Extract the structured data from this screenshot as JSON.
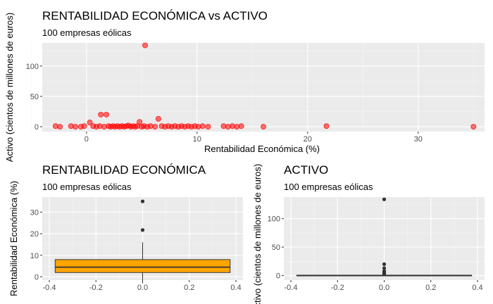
{
  "chart_data": [
    {
      "type": "scatter",
      "title": "RENTABILIDAD ECONÓMICA vs ACTIVO",
      "subtitle": "100 empresas eólicas",
      "xlabel": "Rentabilidad Económica (%)",
      "ylabel": "Activo (cientos de millones de euros)",
      "xlim": [
        -4,
        36
      ],
      "ylim": [
        -8,
        138
      ],
      "x_ticks": [
        0,
        10,
        20,
        30
      ],
      "y_ticks": [
        0,
        50,
        100
      ],
      "grid": true,
      "point_color": "#ff0000",
      "points": [
        [
          -2.8,
          1
        ],
        [
          -2.4,
          0
        ],
        [
          -1.4,
          1
        ],
        [
          -1.0,
          0
        ],
        [
          -0.5,
          0
        ],
        [
          -0.2,
          1
        ],
        [
          0.3,
          7
        ],
        [
          0.6,
          1
        ],
        [
          0.9,
          0
        ],
        [
          1.2,
          1
        ],
        [
          1.3,
          20
        ],
        [
          1.6,
          0
        ],
        [
          1.8,
          20
        ],
        [
          2.0,
          1
        ],
        [
          2.2,
          0
        ],
        [
          2.4,
          1
        ],
        [
          2.6,
          0
        ],
        [
          2.8,
          1
        ],
        [
          3.0,
          0
        ],
        [
          3.2,
          1
        ],
        [
          3.4,
          0
        ],
        [
          3.6,
          1
        ],
        [
          3.8,
          2
        ],
        [
          4.0,
          0
        ],
        [
          4.2,
          1
        ],
        [
          4.4,
          0
        ],
        [
          4.6,
          1
        ],
        [
          4.8,
          8
        ],
        [
          5.0,
          0
        ],
        [
          5.2,
          1
        ],
        [
          5.3,
          134
        ],
        [
          5.5,
          0
        ],
        [
          5.8,
          1
        ],
        [
          6.2,
          0
        ],
        [
          6.5,
          13
        ],
        [
          6.8,
          1
        ],
        [
          7.1,
          0
        ],
        [
          7.4,
          1
        ],
        [
          7.7,
          0
        ],
        [
          8.0,
          1
        ],
        [
          8.3,
          0
        ],
        [
          8.6,
          1
        ],
        [
          8.9,
          0
        ],
        [
          9.2,
          1
        ],
        [
          9.5,
          0
        ],
        [
          9.8,
          1
        ],
        [
          10.1,
          0
        ],
        [
          10.5,
          1
        ],
        [
          11.0,
          0
        ],
        [
          12.4,
          1
        ],
        [
          12.8,
          0
        ],
        [
          13.2,
          1
        ],
        [
          13.6,
          0
        ],
        [
          14.0,
          1
        ],
        [
          16.0,
          0
        ],
        [
          21.7,
          1
        ],
        [
          35.0,
          0
        ]
      ]
    },
    {
      "type": "boxplot",
      "title": "RENTABILIDAD ECONÓMICA",
      "subtitle": "100 empresas eólicas",
      "ylabel": "Rentabilidad Económica (%)",
      "xlim": [
        -0.4,
        0.4
      ],
      "ylim": [
        -1.5,
        37
      ],
      "x_ticks": [
        -0.4,
        -0.2,
        0.0,
        0.2,
        0.4
      ],
      "y_ticks": [
        0,
        10,
        20,
        30
      ],
      "grid": true,
      "fill_color": "#ffa500",
      "box": {
        "q1": 2.0,
        "median": 4.5,
        "q3": 8.0,
        "whisker_low": -3.0,
        "whisker_high": 16.0
      },
      "outliers": [
        21.7,
        35.0
      ]
    },
    {
      "type": "boxplot",
      "title": "ACTIVO",
      "subtitle": "100 empresas eólicas",
      "ylabel": "Activo (cientos de millones de euros)",
      "xlim": [
        -0.4,
        0.4
      ],
      "ylim": [
        -8,
        138
      ],
      "x_ticks": [
        -0.4,
        -0.2,
        0.0,
        0.2,
        0.4
      ],
      "y_ticks": [
        0,
        50,
        100
      ],
      "grid": true,
      "fill_color": "#ffffff",
      "box": {
        "q1": 0.0,
        "median": 0.2,
        "q3": 0.6,
        "whisker_low": 0.0,
        "whisker_high": 1.5
      },
      "outliers": [
        134,
        20,
        13,
        8,
        7,
        5,
        4,
        3,
        2.5
      ]
    }
  ]
}
